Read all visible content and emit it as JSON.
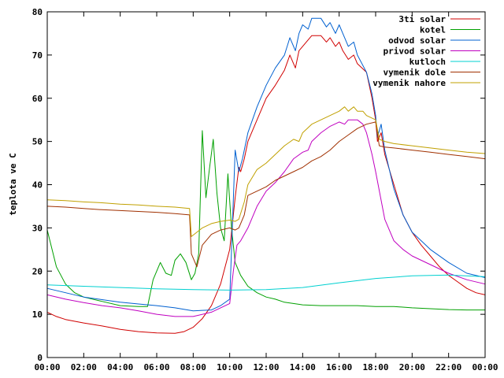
{
  "chart_data": {
    "type": "line",
    "title": "",
    "xlabel": "",
    "ylabel": "teplota ve C",
    "xlim": [
      0,
      24
    ],
    "ylim": [
      0,
      80
    ],
    "x_ticks": [
      {
        "value": 0,
        "label": "00:00"
      },
      {
        "value": 2,
        "label": "02:00"
      },
      {
        "value": 4,
        "label": "04:00"
      },
      {
        "value": 6,
        "label": "06:00"
      },
      {
        "value": 8,
        "label": "08:00"
      },
      {
        "value": 10,
        "label": "10:00"
      },
      {
        "value": 12,
        "label": "12:00"
      },
      {
        "value": 14,
        "label": "14:00"
      },
      {
        "value": 16,
        "label": "16:00"
      },
      {
        "value": 18,
        "label": "18:00"
      },
      {
        "value": 20,
        "label": "20:00"
      },
      {
        "value": 22,
        "label": "22:00"
      },
      {
        "value": 24,
        "label": "00:00"
      }
    ],
    "y_ticks": [
      0,
      10,
      20,
      30,
      40,
      50,
      60,
      70,
      80
    ],
    "grid": false,
    "legend_position": "top-right",
    "series": [
      {
        "name": "3ti solar",
        "color": "#d00000",
        "points": [
          [
            0,
            10.5
          ],
          [
            0.5,
            9.5
          ],
          [
            1,
            8.8
          ],
          [
            2,
            8
          ],
          [
            3,
            7.3
          ],
          [
            4,
            6.5
          ],
          [
            5,
            6
          ],
          [
            6,
            5.7
          ],
          [
            7,
            5.6
          ],
          [
            7.5,
            6
          ],
          [
            8,
            7
          ],
          [
            8.5,
            9
          ],
          [
            9,
            12
          ],
          [
            9.5,
            17
          ],
          [
            10,
            25
          ],
          [
            10.3,
            37
          ],
          [
            10.5,
            44
          ],
          [
            10.6,
            43
          ],
          [
            10.8,
            46
          ],
          [
            11,
            50
          ],
          [
            11.5,
            55
          ],
          [
            12,
            60
          ],
          [
            12.5,
            63
          ],
          [
            13,
            66.5
          ],
          [
            13.3,
            70
          ],
          [
            13.5,
            68
          ],
          [
            13.6,
            67
          ],
          [
            13.8,
            71
          ],
          [
            14,
            72
          ],
          [
            14.5,
            74.5
          ],
          [
            15,
            74.5
          ],
          [
            15.3,
            73
          ],
          [
            15.5,
            74
          ],
          [
            15.8,
            72
          ],
          [
            16,
            73
          ],
          [
            16.2,
            71
          ],
          [
            16.5,
            69
          ],
          [
            16.8,
            70
          ],
          [
            17,
            68
          ],
          [
            17.5,
            66
          ],
          [
            17.8,
            60
          ],
          [
            18,
            55
          ],
          [
            18.1,
            50
          ],
          [
            18.3,
            52
          ],
          [
            18.5,
            47
          ],
          [
            19,
            40
          ],
          [
            19.5,
            33
          ],
          [
            20,
            29
          ],
          [
            20.5,
            26
          ],
          [
            21,
            23.5
          ],
          [
            21.5,
            21
          ],
          [
            22,
            19
          ],
          [
            22.5,
            17.5
          ],
          [
            23,
            16
          ],
          [
            23.5,
            15
          ],
          [
            24,
            14.5
          ]
        ]
      },
      {
        "name": "kotel",
        "color": "#00a000",
        "points": [
          [
            0,
            29.5
          ],
          [
            0.5,
            21
          ],
          [
            1,
            17
          ],
          [
            1.5,
            15
          ],
          [
            2,
            14
          ],
          [
            3,
            13
          ],
          [
            4,
            12
          ],
          [
            5,
            11.8
          ],
          [
            5.5,
            11.8
          ],
          [
            5.8,
            18
          ],
          [
            6.2,
            22
          ],
          [
            6.5,
            19.5
          ],
          [
            6.8,
            19
          ],
          [
            7,
            22.5
          ],
          [
            7.3,
            24
          ],
          [
            7.6,
            22
          ],
          [
            7.9,
            18
          ],
          [
            8.1,
            19.5
          ],
          [
            8.3,
            24
          ],
          [
            8.5,
            52.5
          ],
          [
            8.7,
            37
          ],
          [
            8.9,
            44
          ],
          [
            9.1,
            50.5
          ],
          [
            9.3,
            38
          ],
          [
            9.5,
            30
          ],
          [
            9.7,
            27
          ],
          [
            9.9,
            42.5
          ],
          [
            10.1,
            30
          ],
          [
            10.3,
            22
          ],
          [
            10.6,
            19
          ],
          [
            11,
            16.5
          ],
          [
            11.5,
            15
          ],
          [
            12,
            14
          ],
          [
            12.5,
            13.5
          ],
          [
            13,
            12.8
          ],
          [
            14,
            12.2
          ],
          [
            15,
            12
          ],
          [
            16,
            12
          ],
          [
            17,
            12
          ],
          [
            18,
            11.8
          ],
          [
            19,
            11.8
          ],
          [
            20,
            11.5
          ],
          [
            21,
            11.3
          ],
          [
            22,
            11.1
          ],
          [
            23,
            11
          ],
          [
            24,
            11
          ]
        ]
      },
      {
        "name": "odvod solar",
        "color": "#0060d0",
        "points": [
          [
            0,
            16
          ],
          [
            1,
            15
          ],
          [
            2,
            14
          ],
          [
            3,
            13.4
          ],
          [
            4,
            12.8
          ],
          [
            5,
            12.4
          ],
          [
            6,
            12
          ],
          [
            7,
            11.5
          ],
          [
            8,
            10.8
          ],
          [
            9,
            11
          ],
          [
            9.5,
            12
          ],
          [
            10,
            13.5
          ],
          [
            10.1,
            25
          ],
          [
            10.3,
            48
          ],
          [
            10.5,
            43
          ],
          [
            10.7,
            46
          ],
          [
            11,
            52
          ],
          [
            11.5,
            58
          ],
          [
            12,
            63
          ],
          [
            12.5,
            67
          ],
          [
            13,
            70
          ],
          [
            13.3,
            74
          ],
          [
            13.5,
            72
          ],
          [
            13.6,
            71
          ],
          [
            13.8,
            75
          ],
          [
            14,
            77
          ],
          [
            14.3,
            76
          ],
          [
            14.5,
            78.5
          ],
          [
            15,
            78.5
          ],
          [
            15.3,
            76.5
          ],
          [
            15.5,
            77.5
          ],
          [
            15.8,
            75
          ],
          [
            16,
            77
          ],
          [
            16.2,
            75
          ],
          [
            16.5,
            72
          ],
          [
            16.8,
            73
          ],
          [
            17,
            70
          ],
          [
            17.5,
            66
          ],
          [
            17.8,
            61
          ],
          [
            18,
            56
          ],
          [
            18.1,
            51
          ],
          [
            18.3,
            54
          ],
          [
            18.5,
            48
          ],
          [
            19,
            39
          ],
          [
            19.5,
            33
          ],
          [
            20,
            29
          ],
          [
            20.5,
            27
          ],
          [
            21,
            25
          ],
          [
            22,
            22
          ],
          [
            23,
            19.5
          ],
          [
            24,
            18.5
          ]
        ]
      },
      {
        "name": "privod solar",
        "color": "#c000c0",
        "points": [
          [
            0,
            14.5
          ],
          [
            1,
            13.5
          ],
          [
            2,
            12.7
          ],
          [
            3,
            12
          ],
          [
            4,
            11.5
          ],
          [
            5,
            10.8
          ],
          [
            6,
            10
          ],
          [
            7,
            9.5
          ],
          [
            8,
            9.5
          ],
          [
            9,
            10.5
          ],
          [
            9.5,
            11.5
          ],
          [
            10,
            12.5
          ],
          [
            10.2,
            20
          ],
          [
            10.4,
            26
          ],
          [
            10.6,
            27
          ],
          [
            11,
            30
          ],
          [
            11.5,
            35
          ],
          [
            12,
            38.5
          ],
          [
            12.5,
            40.5
          ],
          [
            13,
            43
          ],
          [
            13.5,
            46
          ],
          [
            14,
            47.5
          ],
          [
            14.3,
            48
          ],
          [
            14.5,
            50
          ],
          [
            15,
            52
          ],
          [
            15.5,
            53.5
          ],
          [
            16,
            54.5
          ],
          [
            16.3,
            54
          ],
          [
            16.5,
            55
          ],
          [
            17,
            55
          ],
          [
            17.3,
            54
          ],
          [
            17.5,
            52
          ],
          [
            17.8,
            47
          ],
          [
            18,
            43
          ],
          [
            18.5,
            32
          ],
          [
            19,
            27
          ],
          [
            19.5,
            25
          ],
          [
            20,
            23.5
          ],
          [
            21,
            21.5
          ],
          [
            22,
            19.5
          ],
          [
            23,
            18
          ],
          [
            24,
            17
          ]
        ]
      },
      {
        "name": "kutloch",
        "color": "#00d0d0",
        "points": [
          [
            0,
            16.8
          ],
          [
            2,
            16.5
          ],
          [
            4,
            16.2
          ],
          [
            6,
            15.9
          ],
          [
            8,
            15.7
          ],
          [
            10,
            15.6
          ],
          [
            12,
            15.7
          ],
          [
            14,
            16.2
          ],
          [
            16,
            17.3
          ],
          [
            18,
            18.3
          ],
          [
            20,
            18.9
          ],
          [
            22,
            19.1
          ],
          [
            24,
            18.7
          ]
        ]
      },
      {
        "name": "vymenik dole",
        "color": "#a03000",
        "points": [
          [
            0,
            35
          ],
          [
            1,
            34.8
          ],
          [
            2,
            34.5
          ],
          [
            3,
            34.2
          ],
          [
            4,
            34
          ],
          [
            5,
            33.8
          ],
          [
            6,
            33.6
          ],
          [
            7,
            33.3
          ],
          [
            7.8,
            33
          ],
          [
            7.9,
            24
          ],
          [
            8.2,
            21
          ],
          [
            8.5,
            26
          ],
          [
            9,
            28.5
          ],
          [
            9.5,
            29.5
          ],
          [
            10,
            30
          ],
          [
            10.3,
            29.5
          ],
          [
            10.5,
            30
          ],
          [
            10.8,
            33
          ],
          [
            11,
            37.5
          ],
          [
            11.5,
            38.5
          ],
          [
            12,
            39.5
          ],
          [
            12.5,
            41
          ],
          [
            13,
            42
          ],
          [
            13.5,
            43
          ],
          [
            14,
            44
          ],
          [
            14.5,
            45.5
          ],
          [
            15,
            46.5
          ],
          [
            15.5,
            48
          ],
          [
            16,
            50
          ],
          [
            16.5,
            51.5
          ],
          [
            17,
            53
          ],
          [
            17.5,
            54
          ],
          [
            18,
            54.5
          ],
          [
            18.2,
            49
          ],
          [
            18.5,
            48.7
          ],
          [
            19,
            48.5
          ],
          [
            20,
            48
          ],
          [
            21,
            47.5
          ],
          [
            22,
            47
          ],
          [
            23,
            46.5
          ],
          [
            24,
            46
          ]
        ]
      },
      {
        "name": "vymenik nahore",
        "color": "#c0a000",
        "points": [
          [
            0,
            36.5
          ],
          [
            1,
            36.3
          ],
          [
            2,
            36
          ],
          [
            3,
            35.8
          ],
          [
            4,
            35.5
          ],
          [
            5,
            35.3
          ],
          [
            6,
            35
          ],
          [
            7,
            34.8
          ],
          [
            7.8,
            34.5
          ],
          [
            7.9,
            28
          ],
          [
            8.2,
            29
          ],
          [
            8.5,
            30
          ],
          [
            9,
            31
          ],
          [
            9.5,
            31.5
          ],
          [
            10,
            31.8
          ],
          [
            10.3,
            31.5
          ],
          [
            10.5,
            32
          ],
          [
            10.8,
            36
          ],
          [
            11,
            40
          ],
          [
            11.5,
            43.5
          ],
          [
            12,
            45
          ],
          [
            12.5,
            47
          ],
          [
            13,
            49
          ],
          [
            13.5,
            50.5
          ],
          [
            13.8,
            50
          ],
          [
            14,
            52
          ],
          [
            14.5,
            54
          ],
          [
            15,
            55
          ],
          [
            15.5,
            56
          ],
          [
            16,
            57
          ],
          [
            16.3,
            58
          ],
          [
            16.5,
            57
          ],
          [
            16.8,
            58
          ],
          [
            17,
            57
          ],
          [
            17.3,
            57
          ],
          [
            17.5,
            56
          ],
          [
            18,
            55
          ],
          [
            18.2,
            50.5
          ],
          [
            18.5,
            50
          ],
          [
            19,
            49.5
          ],
          [
            20,
            49
          ],
          [
            21,
            48.5
          ],
          [
            22,
            48
          ],
          [
            23,
            47.5
          ],
          [
            24,
            47.2
          ]
        ]
      }
    ]
  }
}
